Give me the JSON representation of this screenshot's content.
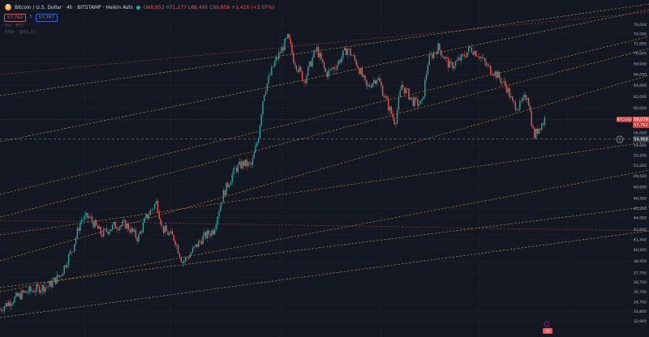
{
  "header": {
    "title": "Bitcoin / U.S. Dollar · 4h · BITSTAMP · Heikin Ashi",
    "coin_symbol": "₿",
    "ohlc": {
      "o_label": "O",
      "o": "68,853",
      "h_label": "H",
      "h": "71,277",
      "l_label": "L",
      "l": "68,495",
      "c_label": "C",
      "c": "69,856",
      "change": "+1,416 (+2.07%)"
    }
  },
  "trade": {
    "sell": "57,762",
    "mid": "5",
    "buy": "57,767"
  },
  "indicators": [
    "Vol · BTC",
    "EMA · SMA 20"
  ],
  "price_labels": {
    "symbol": "BTCUSD",
    "current": "58,079",
    "countdown": "57,761",
    "crosshair": "54,968"
  },
  "event_badge": "33",
  "colors": {
    "background": "#131722",
    "up": "#26a69a",
    "down": "#ef5350",
    "trend_orange": "#f5a623",
    "trend_yellow": "#e0c14a",
    "trend_red": "#c2413a",
    "grid": "#1e222d"
  },
  "chart_data": {
    "type": "candlestick",
    "title": "Bitcoin / U.S. Dollar · 4h · BITSTAMP · Heikin Ashi",
    "ylim": [
      32000,
      78000
    ],
    "y_ticks": [
      32900,
      33800,
      34700,
      35700,
      36700,
      37700,
      38950,
      40200,
      41400,
      42600,
      44000,
      45200,
      46500,
      48000,
      49500,
      51000,
      52500,
      54000,
      56000,
      58000,
      60000,
      62000,
      64000,
      66000,
      68000,
      70000,
      72000,
      74000,
      76000
    ],
    "y_tick_labels": [
      "32,900",
      "33,800",
      "34,700",
      "35,700",
      "36,700",
      "37,700",
      "38,950",
      "40,200",
      "41,400",
      "42,600",
      "44,000",
      "45,200",
      "46,500",
      "48,000",
      "49,500",
      "51,000",
      "52,500",
      "54,000",
      "56,000",
      "58,000",
      "60,000",
      "62,000",
      "64,000",
      "66,000",
      "68,000",
      "70,000",
      "72,000",
      "74,000",
      "76,000"
    ],
    "price_path": [
      [
        0,
        34000
      ],
      [
        15,
        34900
      ],
      [
        30,
        35600
      ],
      [
        45,
        36000
      ],
      [
        60,
        36300
      ],
      [
        75,
        37500
      ],
      [
        90,
        40500
      ],
      [
        100,
        43800
      ],
      [
        110,
        44100
      ],
      [
        125,
        42000
      ],
      [
        140,
        43000
      ],
      [
        155,
        43200
      ],
      [
        170,
        41500
      ],
      [
        180,
        44000
      ],
      [
        193,
        46000
      ],
      [
        200,
        42700
      ],
      [
        215,
        41500
      ],
      [
        225,
        38800
      ],
      [
        235,
        39800
      ],
      [
        250,
        41600
      ],
      [
        263,
        42500
      ],
      [
        275,
        47000
      ],
      [
        290,
        50500
      ],
      [
        300,
        51300
      ],
      [
        310,
        51000
      ],
      [
        318,
        55000
      ],
      [
        325,
        62500
      ],
      [
        338,
        68000
      ],
      [
        348,
        71000
      ],
      [
        355,
        73200
      ],
      [
        362,
        68800
      ],
      [
        375,
        64800
      ],
      [
        390,
        71000
      ],
      [
        402,
        66000
      ],
      [
        415,
        67800
      ],
      [
        428,
        71000
      ],
      [
        440,
        68000
      ],
      [
        452,
        63500
      ],
      [
        465,
        65500
      ],
      [
        478,
        60500
      ],
      [
        487,
        57600
      ],
      [
        495,
        64000
      ],
      [
        510,
        61000
      ],
      [
        520,
        60600
      ],
      [
        528,
        68800
      ],
      [
        540,
        71200
      ],
      [
        555,
        67400
      ],
      [
        570,
        69200
      ],
      [
        580,
        71100
      ],
      [
        590,
        69800
      ],
      [
        600,
        67500
      ],
      [
        612,
        66000
      ],
      [
        625,
        63500
      ],
      [
        632,
        60700
      ],
      [
        640,
        60200
      ],
      [
        650,
        62400
      ],
      [
        658,
        55300
      ],
      [
        665,
        57000
      ],
      [
        670,
        57700
      ],
      [
        672,
        58400
      ]
    ],
    "current_price": 58079,
    "trendlines": [
      {
        "color": "orange",
        "points": [
          [
            0,
            322
          ],
          [
            800,
            93
          ]
        ]
      },
      {
        "color": "orange",
        "points": [
          [
            0,
            268
          ],
          [
            800,
            60
          ]
        ]
      },
      {
        "color": "orange",
        "points": [
          [
            0,
            240
          ],
          [
            800,
            45
          ]
        ]
      },
      {
        "color": "orange",
        "points": [
          [
            0,
            290
          ],
          [
            800,
            175
          ]
        ]
      },
      {
        "color": "orange",
        "points": [
          [
            0,
            360
          ],
          [
            800,
            210
          ]
        ]
      },
      {
        "color": "yellow",
        "points": [
          [
            0,
            355
          ],
          [
            800,
            255
          ]
        ]
      },
      {
        "color": "yellow",
        "points": [
          [
            0,
            392
          ],
          [
            800,
            285
          ]
        ]
      },
      {
        "color": "yellow",
        "points": [
          [
            0,
            175
          ],
          [
            800,
            12
          ]
        ]
      },
      {
        "color": "yellow",
        "points": [
          [
            0,
            118
          ],
          [
            800,
            5
          ]
        ]
      },
      {
        "color": "red",
        "points": [
          [
            0,
            92
          ],
          [
            800,
            15
          ]
        ]
      },
      {
        "color": "red",
        "points": [
          [
            0,
            272
          ],
          [
            800,
            285
          ]
        ]
      }
    ]
  }
}
